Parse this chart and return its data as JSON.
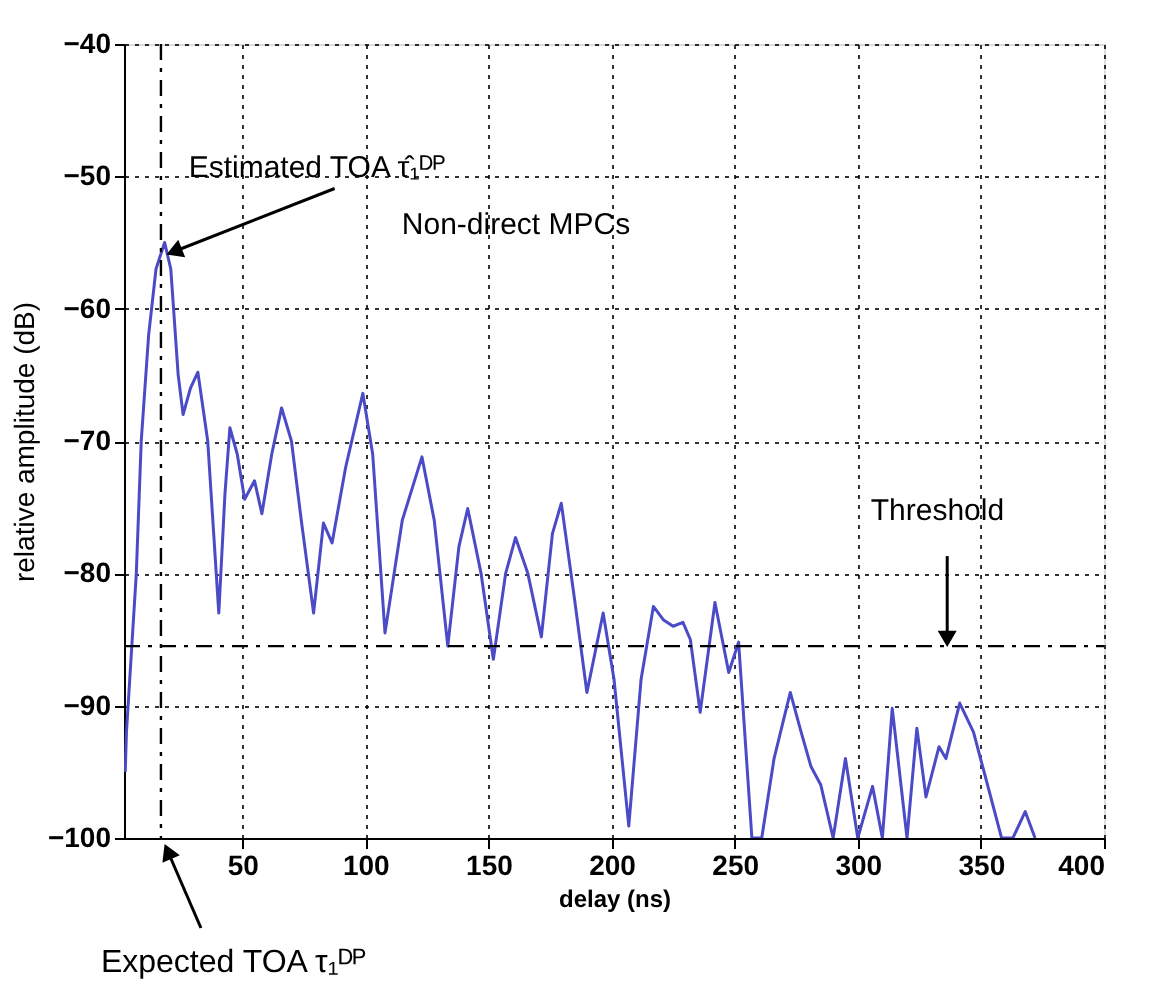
{
  "chart_data": {
    "type": "line",
    "xlabel": "delay (ns)",
    "ylabel": "relative amplitude (dB)",
    "x": [
      2.5,
      3,
      5,
      7,
      9,
      12,
      15,
      18.5,
      21,
      24,
      26,
      29,
      32,
      36,
      40.5,
      43,
      45,
      48,
      51,
      55,
      58,
      62,
      66,
      70,
      74,
      79,
      83,
      86.5,
      92,
      99,
      103,
      108,
      115,
      123,
      128,
      133.5,
      138,
      141.6,
      147,
      152,
      157,
      161,
      166,
      171.5,
      176,
      179.6,
      185,
      190,
      196.6,
      201,
      207,
      212,
      217,
      221,
      225,
      229,
      232,
      236,
      242,
      247.6,
      251.6,
      257,
      261,
      266,
      272.6,
      277,
      281,
      285,
      290,
      295,
      300,
      306,
      310,
      314,
      320,
      324,
      327.7,
      333,
      335.8,
      341.4,
      347,
      352,
      358.4,
      363,
      368,
      372
    ],
    "series": [
      {
        "color": "#4b4bc8",
        "values": [
          -95,
          -92,
          -86,
          -80,
          -70,
          -62,
          -57,
          -55,
          -57,
          -65,
          -68,
          -66,
          -64.8,
          -70,
          -83,
          -74,
          -69,
          -71,
          -74.4,
          -73,
          -75.5,
          -71,
          -67.5,
          -70,
          -76,
          -83,
          -76.2,
          -77.7,
          -72,
          -66.4,
          -71,
          -84.5,
          -76,
          -71.2,
          -76,
          -85.5,
          -78,
          -75.1,
          -80,
          -86.5,
          -80,
          -77.3,
          -80,
          -84.8,
          -77,
          -74.7,
          -82,
          -89,
          -83,
          -88,
          -99.1,
          -88,
          -82.5,
          -83.5,
          -84,
          -83.7,
          -85,
          -90.5,
          -82.2,
          -87.5,
          -85.2,
          -100,
          -100,
          -94,
          -89,
          -92,
          -94.6,
          -96,
          -100,
          -94,
          -100,
          -96.1,
          -100,
          -90.2,
          -100,
          -91.7,
          -96.9,
          -93.1,
          -94,
          -89.8,
          -92,
          -95.5,
          -100,
          -100,
          -98,
          -100
        ]
      }
    ],
    "xlim": [
      2,
      400
    ],
    "xticks": [
      50,
      100,
      150,
      200,
      250,
      300,
      350,
      400
    ],
    "ylim": [
      -100,
      -40
    ],
    "yticks": [
      -100,
      -90,
      -80,
      -70,
      -60,
      -50,
      -40
    ],
    "grid": true,
    "ref_lines": [
      {
        "axis": "x",
        "value": 17,
        "color": "#000000",
        "line_style": "dashdot"
      },
      {
        "axis": "y",
        "value": -85.5,
        "label": "Threshold",
        "color": "#000000",
        "line_style": "dashdot"
      }
    ],
    "annotations": [
      {
        "text": "Estimated TOA  τ̂₁ᴰᴾ",
        "x": 18.5,
        "y": -55
      },
      "Non-direct MPCs",
      {
        "text": "Expected TOA τ₁ᴰᴾ",
        "x": 17,
        "y": -100
      }
    ]
  }
}
